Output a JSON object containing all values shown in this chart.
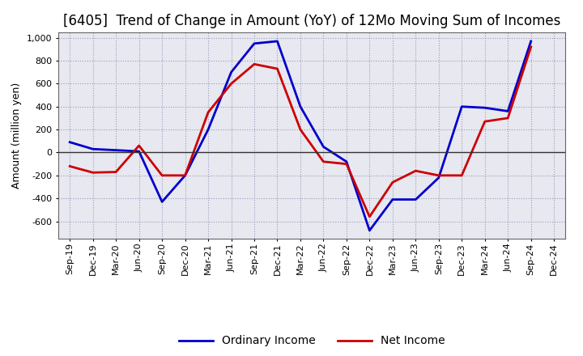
{
  "title": "[6405]  Trend of Change in Amount (YoY) of 12Mo Moving Sum of Incomes",
  "ylabel": "Amount (million yen)",
  "x_labels": [
    "Sep-19",
    "Dec-19",
    "Mar-20",
    "Jun-20",
    "Sep-20",
    "Dec-20",
    "Mar-21",
    "Jun-21",
    "Sep-21",
    "Dec-21",
    "Mar-22",
    "Jun-22",
    "Sep-22",
    "Dec-22",
    "Mar-23",
    "Jun-23",
    "Sep-23",
    "Dec-23",
    "Mar-24",
    "Jun-24",
    "Sep-24",
    "Dec-24"
  ],
  "ordinary_income": [
    90,
    30,
    20,
    10,
    -430,
    -200,
    200,
    700,
    950,
    970,
    400,
    50,
    -80,
    -680,
    -410,
    -410,
    -220,
    400,
    390,
    360,
    970,
    null
  ],
  "net_income": [
    -120,
    -175,
    -170,
    60,
    -200,
    -200,
    350,
    600,
    770,
    730,
    200,
    -80,
    -100,
    -560,
    -260,
    -160,
    -200,
    -200,
    270,
    300,
    920,
    null
  ],
  "ylim": [
    -750,
    1050
  ],
  "yticks": [
    -600,
    -400,
    -200,
    0,
    200,
    400,
    600,
    800,
    1000
  ],
  "ordinary_color": "#0000cc",
  "net_color": "#cc0000",
  "bg_color": "#ffffff",
  "plot_bg_color": "#e8e8f0",
  "grid_color": "#9999bb",
  "linewidth": 2.0,
  "title_fontsize": 12,
  "axis_fontsize": 9,
  "tick_fontsize": 8,
  "legend_fontsize": 10
}
